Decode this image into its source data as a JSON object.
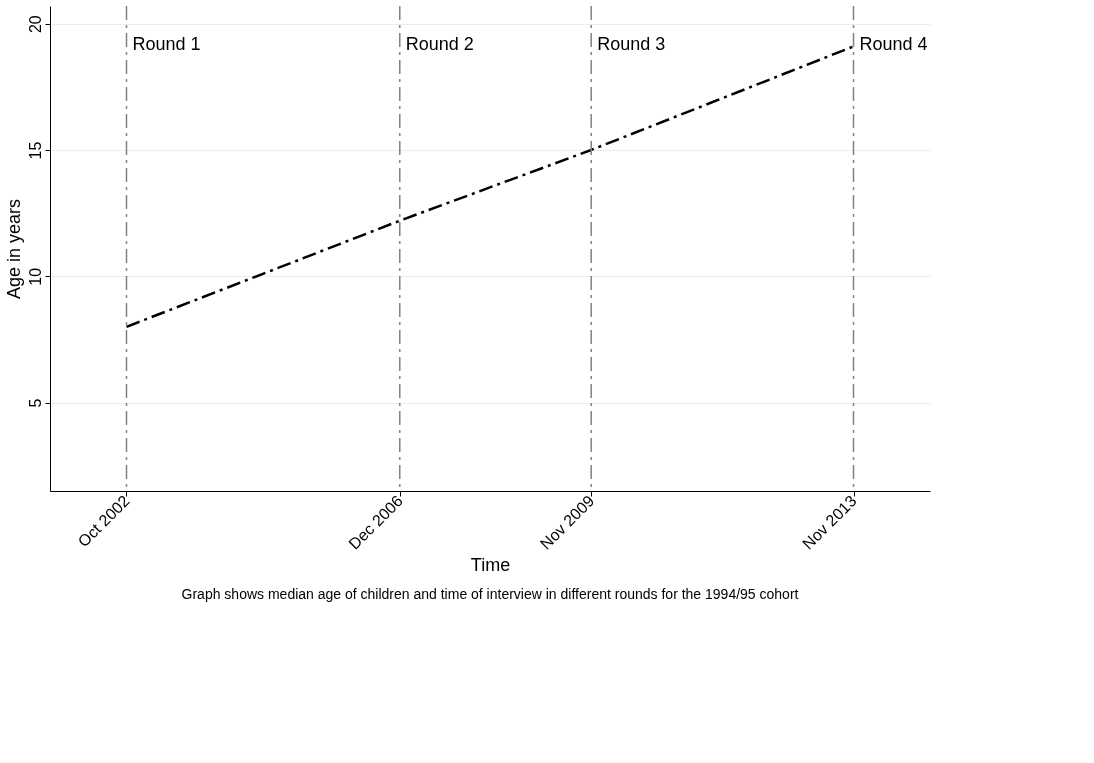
{
  "chart_data": {
    "type": "line",
    "xlabel": "Time",
    "ylabel": "Age in years",
    "x": [
      "2002-10",
      "2006-12",
      "2009-11",
      "2013-11"
    ],
    "series": [
      {
        "color": "#000000",
        "values": [
          8.0,
          12.2,
          15.0,
          19.1
        ],
        "line_style": "dashed"
      }
    ],
    "xlim": [
      "2001-08",
      "2015-01"
    ],
    "xticks": [
      {
        "value": "2002-10",
        "label": "Oct 2002"
      },
      {
        "value": "2006-12",
        "label": "Dec 2006"
      },
      {
        "value": "2009-11",
        "label": "Nov 2009"
      },
      {
        "value": "2013-11",
        "label": "Nov 2013"
      }
    ],
    "ylim": [
      1.5,
      20.7
    ],
    "yticks": [
      5,
      10,
      15,
      20
    ],
    "grid": "y",
    "ref_lines": [
      {
        "axis": "x",
        "value": "2002-10",
        "label": "Round 1",
        "color": "#808080",
        "line_style": "dashed"
      },
      {
        "axis": "x",
        "value": "2006-12",
        "label": "Round 2",
        "color": "#808080",
        "line_style": "dashed"
      },
      {
        "axis": "x",
        "value": "2009-11",
        "label": "Round 3",
        "color": "#808080",
        "line_style": "dashed"
      },
      {
        "axis": "x",
        "value": "2013-11",
        "label": "Round 4",
        "color": "#808080",
        "line_style": "dashed"
      }
    ],
    "annotations": [
      "Graph shows median age of children and time of interview in different rounds for the 1994/95 cohort"
    ]
  }
}
